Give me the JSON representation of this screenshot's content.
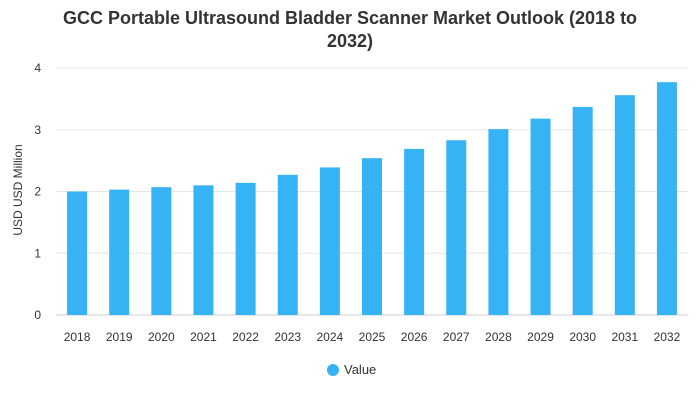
{
  "chart_data": {
    "type": "bar",
    "title": "GCC Portable Ultrasound Bladder Scanner Market Outlook (2018 to 2032)",
    "title_lines": [
      "GCC Portable Ultrasound Bladder Scanner Market Outlook (2018 to",
      "2032)"
    ],
    "xlabel": "",
    "ylabel": "USD USD Million",
    "categories": [
      "2018",
      "2019",
      "2020",
      "2021",
      "2022",
      "2023",
      "2024",
      "2025",
      "2026",
      "2027",
      "2028",
      "2029",
      "2030",
      "2031",
      "2032"
    ],
    "series": [
      {
        "name": "Value",
        "values": [
          2.0,
          2.03,
          2.07,
          2.1,
          2.14,
          2.27,
          2.39,
          2.54,
          2.69,
          2.83,
          3.01,
          3.18,
          3.37,
          3.56,
          3.77
        ]
      }
    ],
    "ylim": [
      0,
      4
    ],
    "yticks": [
      0,
      1,
      2,
      3,
      4
    ],
    "grid": true,
    "legend": "bottom-center",
    "colors": {
      "bar": "#36b3f5",
      "grid": "#e6e6e6",
      "text": "#333333",
      "title": "#333333"
    }
  }
}
